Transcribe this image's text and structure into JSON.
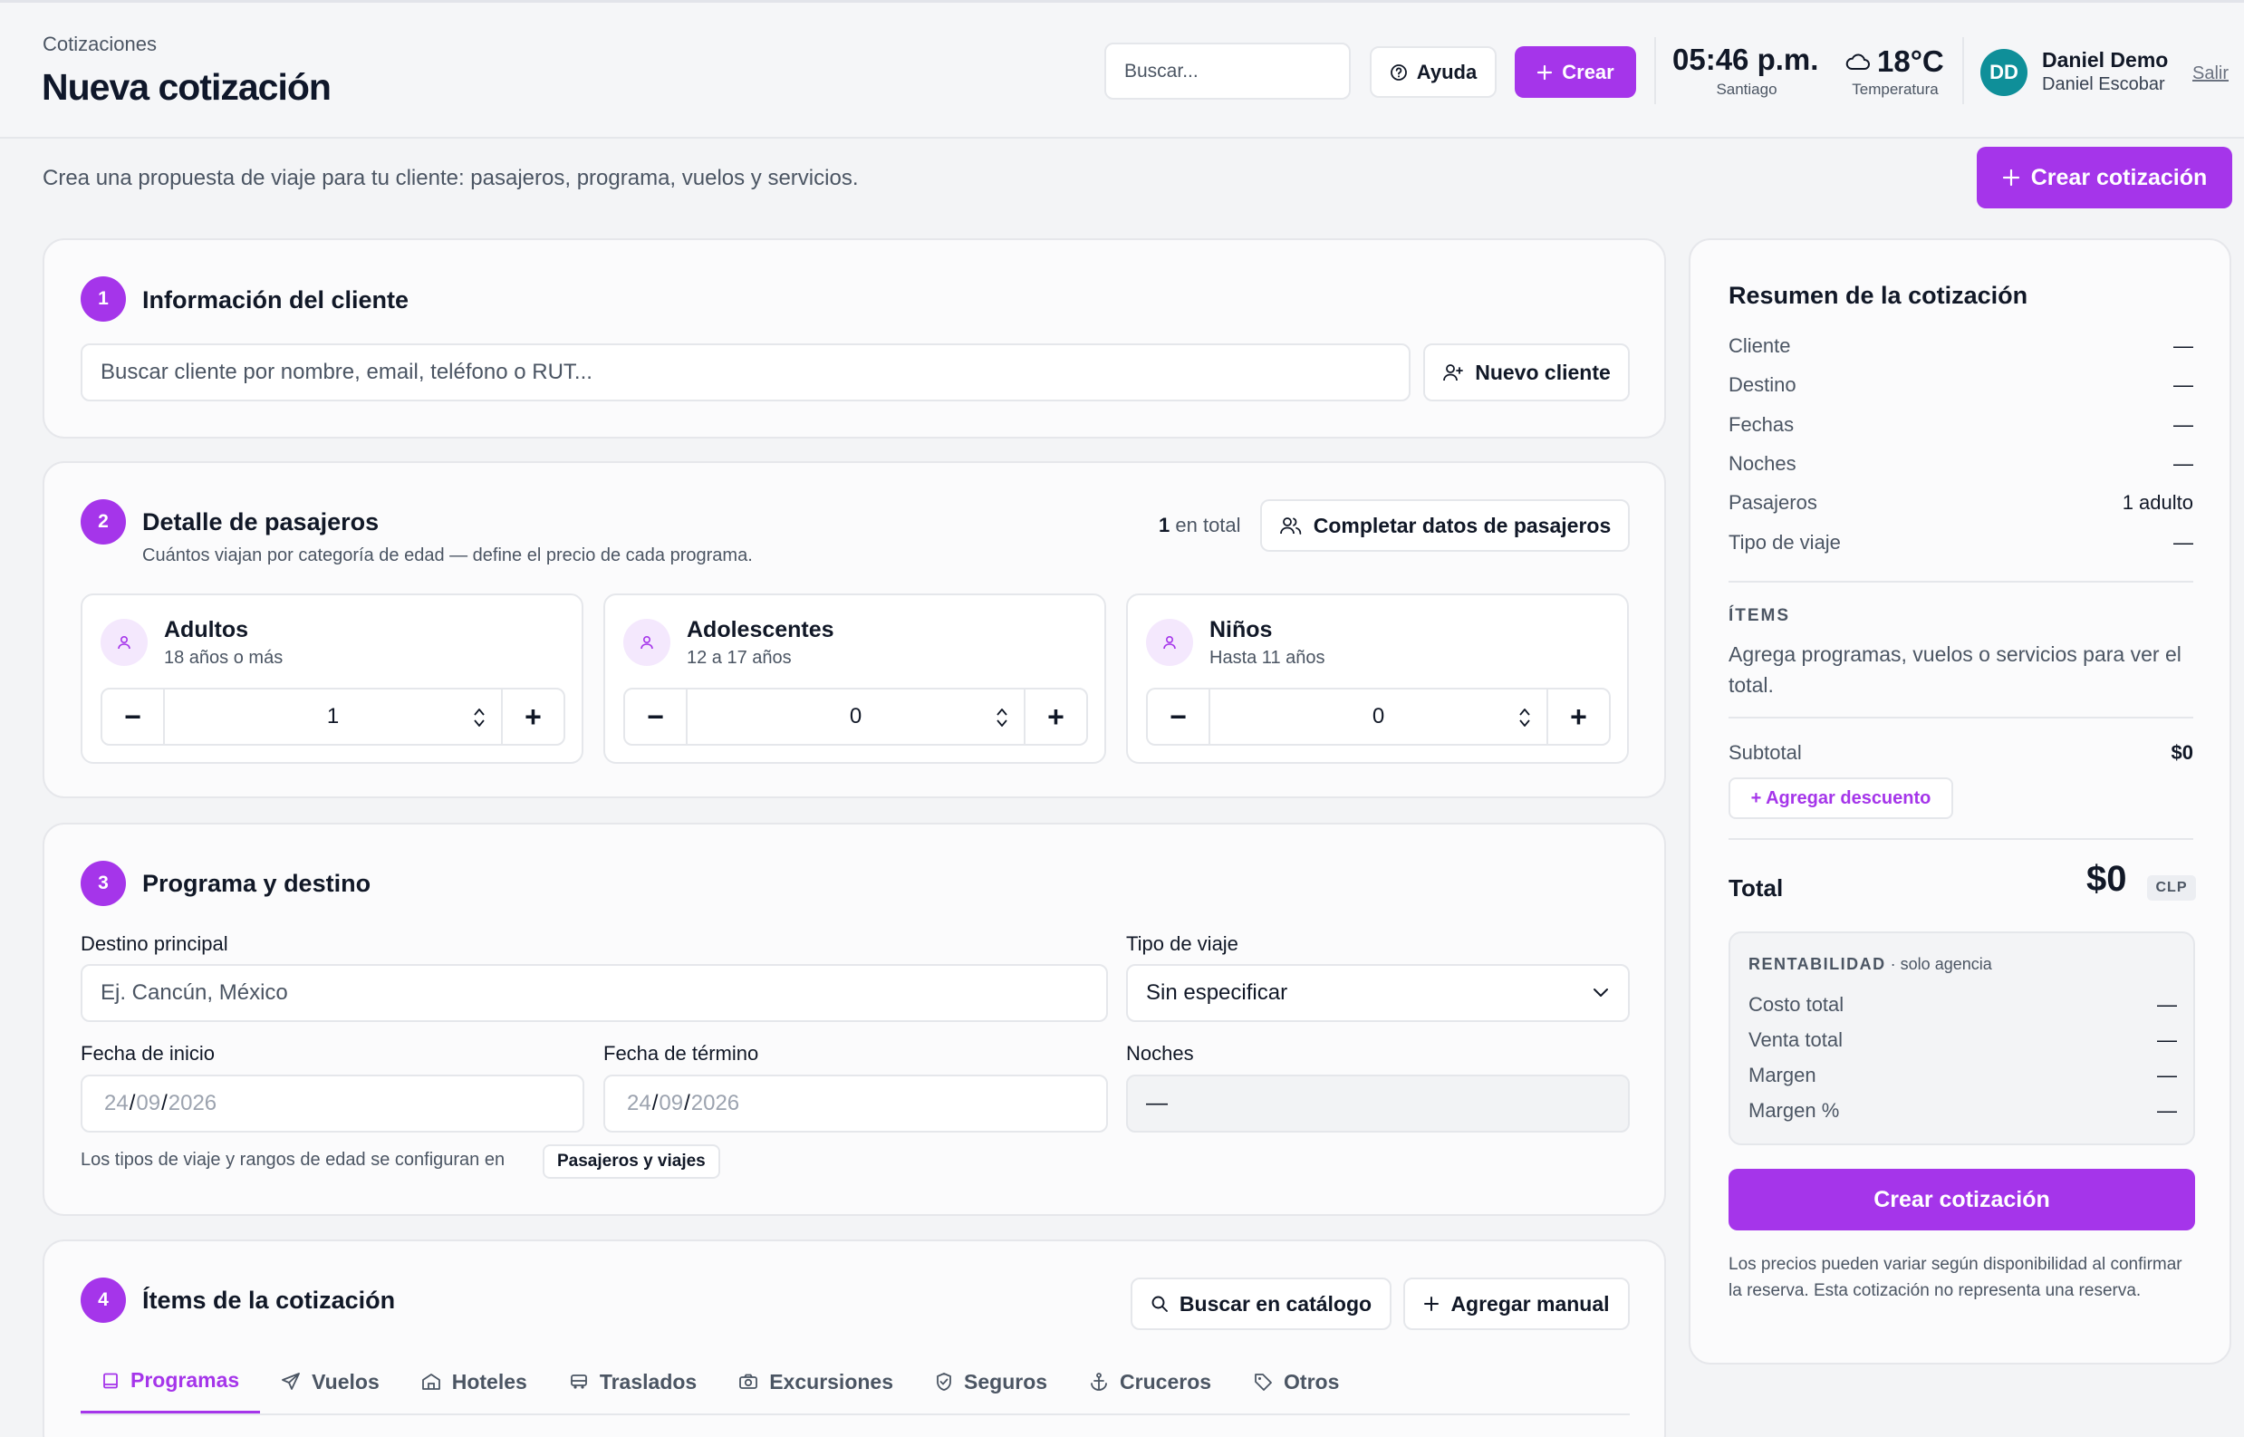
{
  "header": {
    "breadcrumb": "Cotizaciones",
    "title": "Nueva cotización",
    "search_placeholder": "Buscar...",
    "help_label": "Ayuda",
    "create_label": "Crear",
    "time": "05:46 p.m.",
    "time_city": "Santiago",
    "temperature": "18°C",
    "temperature_label": "Temperatura",
    "avatar_initials": "DD",
    "user_name": "Daniel Demo",
    "user_fullname": "Daniel Escobar",
    "logout_label": "Salir",
    "weather_icon": "cloud-icon"
  },
  "subtitle": "Crea una propuesta de viaje para tu cliente: pasajeros, programa, vuelos y servicios.",
  "top_create_label": "Crear cotización",
  "client": {
    "step": "1",
    "title": "Información del cliente",
    "search_placeholder": "Buscar cliente por nombre, email, teléfono o RUT...",
    "new_client_label": "Nuevo cliente"
  },
  "passengers": {
    "step": "2",
    "title": "Detalle de pasajeros",
    "description": "Cuántos viajan por categoría de edad — define el precio de cada programa.",
    "total_count": "1",
    "total_suffix": "en total",
    "complete_label": "Completar datos de pasajeros",
    "categories": [
      {
        "name": "Adultos",
        "range": "18 años o más",
        "value": "1"
      },
      {
        "name": "Adolescentes",
        "range": "12 a 17 años",
        "value": "0"
      },
      {
        "name": "Niños",
        "range": "Hasta 11 años",
        "value": "0"
      }
    ],
    "minus": "−",
    "plus": "+"
  },
  "program": {
    "step": "3",
    "title": "Programa y destino",
    "destination_label": "Destino principal",
    "destination_placeholder": "Ej. Cancún, México",
    "trip_type_label": "Tipo de viaje",
    "trip_type_value": "Sin especificar",
    "start_label": "Fecha de inicio",
    "end_label": "Fecha de término",
    "nights_label": "Noches",
    "nights_value": "—",
    "date_day": "24",
    "date_month": "09",
    "date_year": "2026",
    "date_sep": "/",
    "note": "Los tipos de viaje y rangos de edad se configuran en",
    "note_link": "Pasajeros y viajes"
  },
  "items": {
    "step": "4",
    "title": "Ítems de la cotización",
    "catalog_label": "Buscar en catálogo",
    "manual_label": "Agregar manual",
    "tabs": [
      "Programas",
      "Vuelos",
      "Hoteles",
      "Traslados",
      "Excursiones",
      "Seguros",
      "Cruceros",
      "Otros"
    ],
    "active_tab": "Programas"
  },
  "summary": {
    "title": "Resumen de la cotización",
    "rows": [
      {
        "label": "Cliente",
        "value": "—"
      },
      {
        "label": "Destino",
        "value": "—"
      },
      {
        "label": "Fechas",
        "value": "—"
      },
      {
        "label": "Noches",
        "value": "—"
      },
      {
        "label": "Pasajeros",
        "value": "1 adulto"
      },
      {
        "label": "Tipo de viaje",
        "value": "—"
      }
    ],
    "items_label": "ÍTEMS",
    "items_text": "Agrega programas, vuelos o servicios para ver el total.",
    "subtotal_label": "Subtotal",
    "subtotal_value": "$0",
    "discount_label": "+ Agregar descuento",
    "total_label": "Total",
    "total_value": "$0",
    "currency": "CLP",
    "rent_label": "RENTABILIDAD",
    "rent_sub": "· solo agencia",
    "rent_rows": [
      {
        "label": "Costo total",
        "value": "—"
      },
      {
        "label": "Venta total",
        "value": "—"
      },
      {
        "label": "Margen",
        "value": "—"
      },
      {
        "label": "Margen %",
        "value": "—"
      }
    ],
    "create_label": "Crear cotización",
    "disclaimer": "Los precios pueden variar según disponibilidad al confirmar la reserva. Esta cotización no representa una reserva."
  },
  "colors": {
    "accent": "#a535ea",
    "avatar": "#0f8f99"
  }
}
